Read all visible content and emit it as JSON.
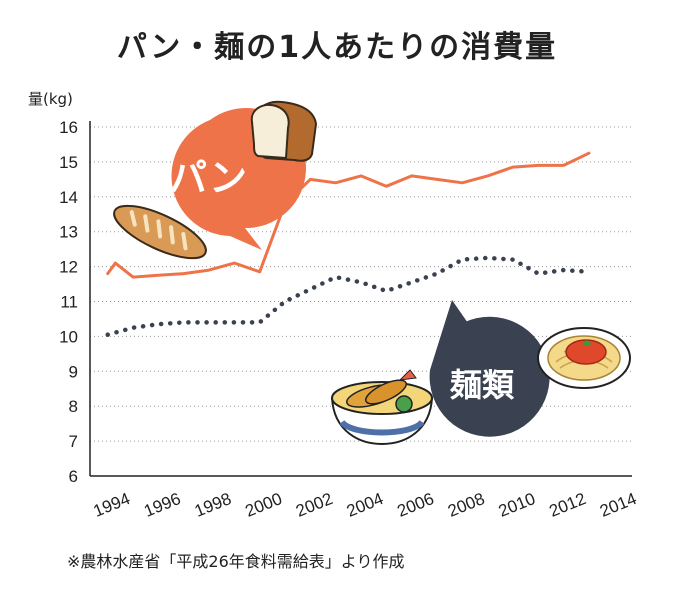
{
  "title": "パン・麺の1人あたりの消費量",
  "source": "※農林水産省「平成26年食料需給表」より作成",
  "colors": {
    "bread": "#ef7349",
    "noodle": "#3a4150",
    "grid": "#999999"
  },
  "icons": [
    "bread-loaf-icon",
    "baguette-icon",
    "tempura-udon-icon",
    "spaghetti-icon"
  ],
  "chart_data": {
    "type": "line",
    "title": "パン・麺の1人あたりの消費量",
    "xlabel": "",
    "ylabel": "量(kg)",
    "xlim": [
      1993.3,
      2014.7
    ],
    "ylim": [
      6,
      16
    ],
    "yticks": [
      6,
      7,
      8,
      9,
      10,
      11,
      12,
      13,
      14,
      15,
      16
    ],
    "xticks": [
      1994,
      1996,
      1998,
      2000,
      2002,
      2004,
      2006,
      2008,
      2010,
      2012,
      2014
    ],
    "grid": true,
    "series": [
      {
        "name": "パン",
        "style": "solid",
        "points": [
          [
            1994,
            11.8
          ],
          [
            1994.3,
            12.1
          ],
          [
            1995,
            11.7
          ],
          [
            1996,
            11.75
          ],
          [
            1997,
            11.8
          ],
          [
            1998,
            11.9
          ],
          [
            1999,
            12.1
          ],
          [
            2000,
            11.85
          ],
          [
            2001,
            13.8
          ],
          [
            2002,
            14.5
          ],
          [
            2003,
            14.4
          ],
          [
            2004,
            14.6
          ],
          [
            2005,
            14.3
          ],
          [
            2006,
            14.6
          ],
          [
            2007,
            14.5
          ],
          [
            2008,
            14.4
          ],
          [
            2009,
            14.6
          ],
          [
            2010,
            14.85
          ],
          [
            2011,
            14.9
          ],
          [
            2012,
            14.9
          ],
          [
            2013,
            15.25
          ]
        ]
      },
      {
        "name": "麺類",
        "style": "dotted",
        "points": [
          [
            1994,
            10.05
          ],
          [
            1995,
            10.25
          ],
          [
            1996,
            10.35
          ],
          [
            1997,
            10.4
          ],
          [
            1998,
            10.4
          ],
          [
            1999,
            10.4
          ],
          [
            2000,
            10.4
          ],
          [
            2001,
            11.0
          ],
          [
            2002,
            11.35
          ],
          [
            2003,
            11.7
          ],
          [
            2004,
            11.55
          ],
          [
            2005,
            11.3
          ],
          [
            2006,
            11.55
          ],
          [
            2007,
            11.8
          ],
          [
            2008,
            12.2
          ],
          [
            2009,
            12.25
          ],
          [
            2010,
            12.2
          ],
          [
            2011,
            11.8
          ],
          [
            2012,
            11.9
          ],
          [
            2013,
            11.85
          ]
        ]
      }
    ]
  }
}
